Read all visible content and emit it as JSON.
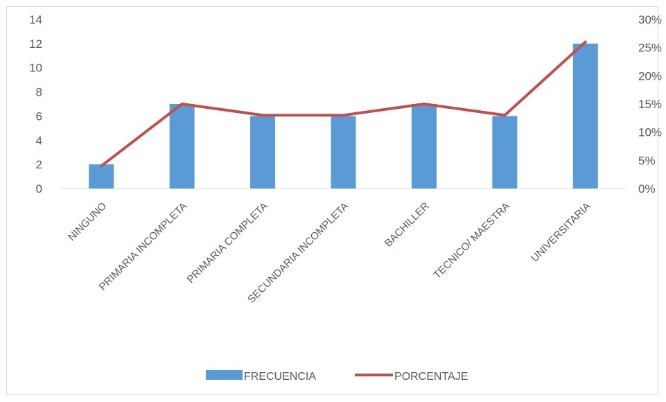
{
  "chart_data": {
    "type": "bar",
    "categories": [
      "NINGUNO",
      "PRIMARIA INCOMPLETA",
      "PRIMARIA COMPLETA",
      "SECUNDARIA INCOMPLETA",
      "BACHILLER",
      "TECNICO/ MAESTRA",
      "UNIVERSITARIA"
    ],
    "series": [
      {
        "name": "FRECUENCIA",
        "type": "bar",
        "axis": "left",
        "values": [
          2,
          7,
          6,
          6,
          7,
          6,
          12
        ],
        "color": "#5b9bd5"
      },
      {
        "name": "PORCENTAJE",
        "type": "line",
        "axis": "right",
        "values": [
          0.04,
          0.15,
          0.13,
          0.13,
          0.15,
          0.13,
          0.26
        ],
        "color": "#c0504d"
      }
    ],
    "y_left": {
      "min": 0,
      "max": 14,
      "step": 2,
      "tick_labels": [
        "0",
        "2",
        "4",
        "6",
        "8",
        "10",
        "12",
        "14"
      ]
    },
    "y_right": {
      "min": 0,
      "max": 0.3,
      "step": 0.05,
      "tick_labels": [
        "0%",
        "5%",
        "10%",
        "15%",
        "20%",
        "25%",
        "30%"
      ]
    },
    "grid": false,
    "legend": {
      "position": "bottom",
      "items": [
        "FRECUENCIA",
        "PORCENTAJE"
      ]
    },
    "title": "",
    "xlabel": "",
    "ylabel": ""
  }
}
